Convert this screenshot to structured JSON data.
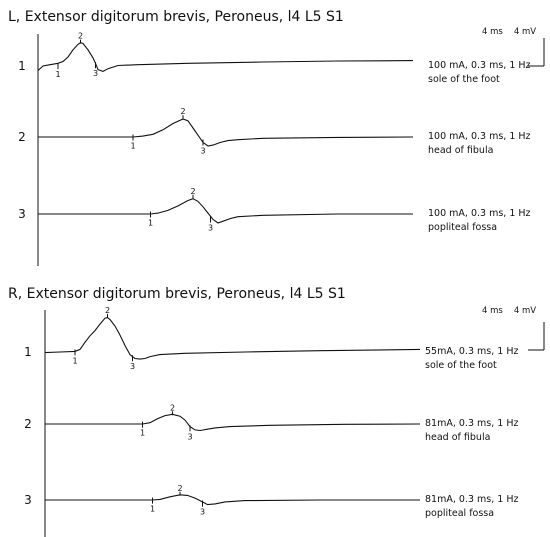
{
  "chart_data": [
    {
      "type": "line",
      "title": "L, Extensor digitorum brevis, Peroneus, l4 L5 S1",
      "scale": {
        "time": "4 ms",
        "amplitude": "4 mV"
      },
      "traces": [
        {
          "row": "1",
          "stimulus": "100 mA, 0.3 ms, 1 Hz",
          "site": "sole of the foot",
          "markers": [
            {
              "label": "1",
              "x": 4.0,
              "y": 0.1
            },
            {
              "label": "2",
              "x": 8.5,
              "y": 2.6
            },
            {
              "label": "3",
              "x": 11.5,
              "y": 0.2
            }
          ],
          "points": [
            [
              0,
              -0.5
            ],
            [
              1,
              0.0
            ],
            [
              2,
              0.1
            ],
            [
              3,
              0.2
            ],
            [
              4,
              0.3
            ],
            [
              5,
              0.5
            ],
            [
              6,
              1.0
            ],
            [
              7,
              1.8
            ],
            [
              8,
              2.4
            ],
            [
              8.5,
              2.6
            ],
            [
              9,
              2.5
            ],
            [
              10,
              1.8
            ],
            [
              11,
              0.9
            ],
            [
              11.5,
              0.3
            ],
            [
              12,
              -0.4
            ],
            [
              13,
              -0.6
            ],
            [
              14,
              -0.3
            ],
            [
              16,
              0.05
            ],
            [
              20,
              0.15
            ],
            [
              30,
              0.3
            ],
            [
              45,
              0.45
            ],
            [
              60,
              0.55
            ],
            [
              75,
              0.6
            ]
          ]
        },
        {
          "row": "2",
          "stimulus": "100 mA, 0.3 ms, 1 Hz",
          "site": "head of fibula",
          "markers": [
            {
              "label": "1",
              "x": 19.0,
              "y": 0.05
            },
            {
              "label": "2",
              "x": 29.0,
              "y": 2.1
            },
            {
              "label": "3",
              "x": 33.0,
              "y": -0.5
            }
          ],
          "points": [
            [
              0,
              0
            ],
            [
              19,
              0
            ],
            [
              21,
              0.1
            ],
            [
              23,
              0.3
            ],
            [
              25,
              0.8
            ],
            [
              27,
              1.5
            ],
            [
              29,
              2.0
            ],
            [
              30,
              1.8
            ],
            [
              31,
              1.0
            ],
            [
              32,
              0.2
            ],
            [
              33,
              -0.6
            ],
            [
              34,
              -1.0
            ],
            [
              35,
              -0.9
            ],
            [
              36.5,
              -0.6
            ],
            [
              38,
              -0.4
            ],
            [
              40,
              -0.3
            ],
            [
              45,
              -0.15
            ],
            [
              60,
              -0.05
            ],
            [
              75,
              0.0
            ]
          ]
        },
        {
          "row": "3",
          "stimulus": "100 mA, 0.3 ms, 1 Hz",
          "site": "popliteal fossa",
          "markers": [
            {
              "label": "1",
              "x": 22.5,
              "y": 0.05
            },
            {
              "label": "2",
              "x": 31.0,
              "y": 1.8
            },
            {
              "label": "3",
              "x": 34.5,
              "y": -0.5
            }
          ],
          "points": [
            [
              0,
              0
            ],
            [
              22.5,
              0
            ],
            [
              24,
              0.1
            ],
            [
              26,
              0.4
            ],
            [
              28,
              0.9
            ],
            [
              30,
              1.5
            ],
            [
              31,
              1.7
            ],
            [
              32,
              1.4
            ],
            [
              33,
              0.8
            ],
            [
              34,
              0.1
            ],
            [
              35,
              -0.6
            ],
            [
              36,
              -1.0
            ],
            [
              37,
              -0.8
            ],
            [
              38.5,
              -0.5
            ],
            [
              40,
              -0.3
            ],
            [
              45,
              -0.15
            ],
            [
              60,
              0.0
            ],
            [
              75,
              0.0
            ]
          ]
        }
      ]
    },
    {
      "type": "line",
      "title": "R, Extensor digitorum brevis, Peroneus, l4 L5 S1",
      "scale": {
        "time": "4 ms",
        "amplitude": "4 mV"
      },
      "traces": [
        {
          "row": "1",
          "stimulus": "55mA, 0.3 ms, 1 Hz",
          "site": "sole of the foot",
          "markers": [
            {
              "label": "1",
              "x": 6.0,
              "y": 0.1
            },
            {
              "label": "2",
              "x": 12.5,
              "y": 5.4
            },
            {
              "label": "3",
              "x": 17.5,
              "y": -0.8
            }
          ],
          "points": [
            [
              0,
              -0.1
            ],
            [
              3,
              0.0
            ],
            [
              6,
              0.1
            ],
            [
              7,
              0.4
            ],
            [
              8,
              1.5
            ],
            [
              9,
              2.5
            ],
            [
              10,
              3.3
            ],
            [
              11,
              4.3
            ],
            [
              12,
              5.2
            ],
            [
              12.5,
              5.3
            ],
            [
              13,
              5.0
            ],
            [
              14,
              4.0
            ],
            [
              15,
              2.6
            ],
            [
              16,
              1.0
            ],
            [
              17,
              -0.4
            ],
            [
              18,
              -1.0
            ],
            [
              19,
              -1.1
            ],
            [
              20,
              -1.0
            ],
            [
              21,
              -0.7
            ],
            [
              23,
              -0.4
            ],
            [
              28,
              -0.2
            ],
            [
              40,
              0.0
            ],
            [
              55,
              0.2
            ],
            [
              75,
              0.4
            ]
          ]
        },
        {
          "row": "2",
          "stimulus": "81mA, 0.3 ms, 1 Hz",
          "site": "head of fibula",
          "markers": [
            {
              "label": "1",
              "x": 19.5,
              "y": 0.05
            },
            {
              "label": "2",
              "x": 25.5,
              "y": 1.5
            },
            {
              "label": "3",
              "x": 29.0,
              "y": -0.5
            }
          ],
          "points": [
            [
              0,
              0
            ],
            [
              19.5,
              0
            ],
            [
              21,
              0.2
            ],
            [
              22.5,
              0.8
            ],
            [
              24,
              1.3
            ],
            [
              25.5,
              1.5
            ],
            [
              27,
              1.2
            ],
            [
              28,
              0.6
            ],
            [
              29,
              -0.4
            ],
            [
              30,
              -0.9
            ],
            [
              31,
              -1.0
            ],
            [
              32.5,
              -0.8
            ],
            [
              34,
              -0.6
            ],
            [
              37,
              -0.4
            ],
            [
              45,
              -0.2
            ],
            [
              60,
              -0.05
            ],
            [
              75,
              0.0
            ]
          ]
        },
        {
          "row": "3",
          "stimulus": "81mA, 0.3 ms, 1 Hz",
          "site": "popliteal fossa",
          "markers": [
            {
              "label": "1",
              "x": 21.5,
              "y": 0.05
            },
            {
              "label": "2",
              "x": 27.0,
              "y": 0.8
            },
            {
              "label": "3",
              "x": 31.5,
              "y": -0.4
            }
          ],
          "points": [
            [
              0,
              0
            ],
            [
              21.5,
              0
            ],
            [
              23,
              0.1
            ],
            [
              25,
              0.5
            ],
            [
              27,
              0.8
            ],
            [
              28.5,
              0.7
            ],
            [
              30,
              0.3
            ],
            [
              31.5,
              -0.3
            ],
            [
              32.5,
              -0.7
            ],
            [
              34,
              -0.6
            ],
            [
              36,
              -0.3
            ],
            [
              40,
              -0.1
            ],
            [
              55,
              0.0
            ],
            [
              75,
              0.0
            ]
          ]
        }
      ]
    }
  ]
}
